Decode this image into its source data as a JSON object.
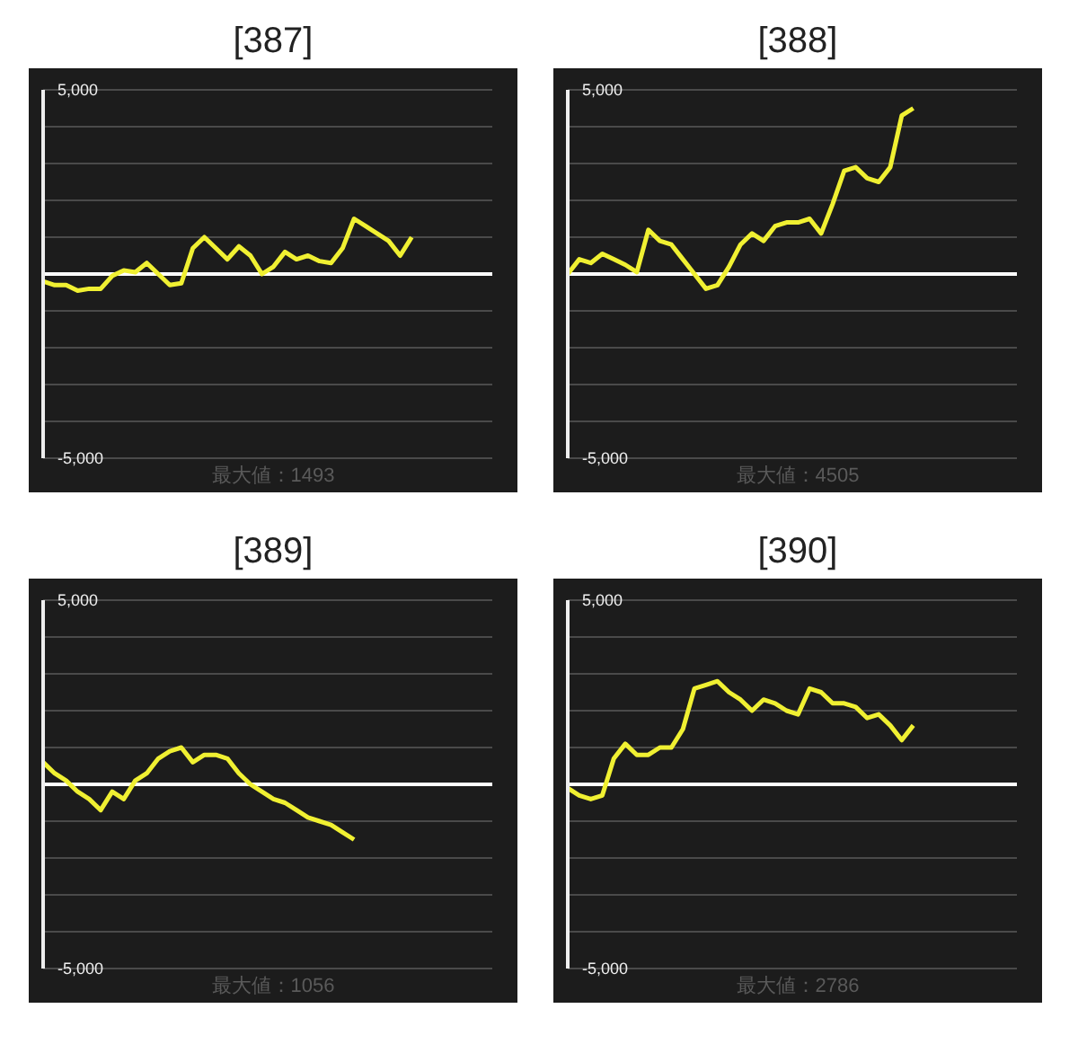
{
  "chart_data": [
    {
      "type": "line",
      "title": "[387]",
      "annotations": [
        "最大値：1493"
      ],
      "categories": [
        null,
        null,
        null,
        null,
        null,
        null,
        null,
        null,
        null,
        null,
        null,
        null,
        null,
        null,
        null,
        null,
        null,
        null,
        null,
        null,
        null,
        null,
        null,
        null,
        null,
        null,
        null,
        null,
        null,
        null,
        null,
        null,
        null,
        null,
        null,
        null,
        null,
        null,
        null,
        null
      ],
      "series": [
        {
          "color": "#f0f032",
          "values": [
            -200,
            -300,
            -300,
            -450,
            -400,
            -400,
            -50,
            100,
            50,
            300,
            0,
            -300,
            -250,
            700,
            1000,
            700,
            400,
            750,
            500,
            0,
            200,
            600,
            400,
            500,
            350,
            300,
            700,
            1500,
            1300,
            1100,
            900,
            500,
            1000,
            null,
            null,
            null,
            null,
            null,
            null,
            null
          ]
        }
      ],
      "ylim": [
        -5000,
        5000
      ],
      "yticks": [
        {
          "value": -5000,
          "label": "-5,000"
        },
        {
          "value": -4000,
          "label": null
        },
        {
          "value": -3000,
          "label": null
        },
        {
          "value": -2000,
          "label": null
        },
        {
          "value": -1000,
          "label": null
        },
        {
          "value": 0,
          "label": null
        },
        {
          "value": 1000,
          "label": null
        },
        {
          "value": 2000,
          "label": null
        },
        {
          "value": 3000,
          "label": null
        },
        {
          "value": 4000,
          "label": null
        },
        {
          "value": 5000,
          "label": "5,000"
        }
      ],
      "grid": "y",
      "tick_labels": "y",
      "ref_lines": [
        {
          "axis": "y",
          "value": 0,
          "color": "#ffffff"
        }
      ]
    },
    {
      "type": "line",
      "title": "[388]",
      "annotations": [
        "最大値：4505"
      ],
      "categories": [
        null,
        null,
        null,
        null,
        null,
        null,
        null,
        null,
        null,
        null,
        null,
        null,
        null,
        null,
        null,
        null,
        null,
        null,
        null,
        null,
        null,
        null,
        null,
        null,
        null,
        null,
        null,
        null,
        null,
        null,
        null,
        null,
        null,
        null,
        null,
        null,
        null,
        null,
        null,
        null
      ],
      "series": [
        {
          "color": "#f0f032",
          "values": [
            0,
            400,
            300,
            550,
            400,
            250,
            50,
            1200,
            900,
            800,
            400,
            0,
            -400,
            -300,
            200,
            800,
            1100,
            900,
            1300,
            1400,
            1400,
            1500,
            1100,
            1900,
            2800,
            2900,
            2600,
            2500,
            2900,
            4300,
            4500,
            null,
            null,
            null,
            null,
            null,
            null,
            null,
            null,
            null
          ]
        }
      ],
      "ylim": [
        -5000,
        5000
      ],
      "yticks": [
        {
          "value": -5000,
          "label": "-5,000"
        },
        {
          "value": -4000,
          "label": null
        },
        {
          "value": -3000,
          "label": null
        },
        {
          "value": -2000,
          "label": null
        },
        {
          "value": -1000,
          "label": null
        },
        {
          "value": 0,
          "label": null
        },
        {
          "value": 1000,
          "label": null
        },
        {
          "value": 2000,
          "label": null
        },
        {
          "value": 3000,
          "label": null
        },
        {
          "value": 4000,
          "label": null
        },
        {
          "value": 5000,
          "label": "5,000"
        }
      ],
      "grid": "y",
      "tick_labels": "y",
      "ref_lines": [
        {
          "axis": "y",
          "value": 0,
          "color": "#ffffff"
        }
      ]
    },
    {
      "type": "line",
      "title": "[389]",
      "annotations": [
        "最大値：1056"
      ],
      "categories": [
        null,
        null,
        null,
        null,
        null,
        null,
        null,
        null,
        null,
        null,
        null,
        null,
        null,
        null,
        null,
        null,
        null,
        null,
        null,
        null,
        null,
        null,
        null,
        null,
        null,
        null,
        null,
        null,
        null,
        null,
        null,
        null,
        null,
        null,
        null,
        null,
        null,
        null,
        null,
        null
      ],
      "series": [
        {
          "color": "#f0f032",
          "values": [
            600,
            300,
            100,
            -200,
            -400,
            -700,
            -200,
            -400,
            100,
            300,
            700,
            900,
            1000,
            600,
            800,
            800,
            700,
            300,
            0,
            -200,
            -400,
            -500,
            -700,
            -900,
            -1000,
            -1100,
            -1300,
            -1500,
            null,
            null,
            null,
            null,
            null,
            null,
            null,
            null,
            null,
            null,
            null,
            null
          ]
        }
      ],
      "ylim": [
        -5000,
        5000
      ],
      "yticks": [
        {
          "value": -5000,
          "label": "-5,000"
        },
        {
          "value": -4000,
          "label": null
        },
        {
          "value": -3000,
          "label": null
        },
        {
          "value": -2000,
          "label": null
        },
        {
          "value": -1000,
          "label": null
        },
        {
          "value": 0,
          "label": null
        },
        {
          "value": 1000,
          "label": null
        },
        {
          "value": 2000,
          "label": null
        },
        {
          "value": 3000,
          "label": null
        },
        {
          "value": 4000,
          "label": null
        },
        {
          "value": 5000,
          "label": "5,000"
        }
      ],
      "grid": "y",
      "tick_labels": "y",
      "ref_lines": [
        {
          "axis": "y",
          "value": 0,
          "color": "#ffffff"
        }
      ]
    },
    {
      "type": "line",
      "title": "[390]",
      "annotations": [
        "最大値：2786"
      ],
      "categories": [
        null,
        null,
        null,
        null,
        null,
        null,
        null,
        null,
        null,
        null,
        null,
        null,
        null,
        null,
        null,
        null,
        null,
        null,
        null,
        null,
        null,
        null,
        null,
        null,
        null,
        null,
        null,
        null,
        null,
        null,
        null,
        null,
        null,
        null,
        null,
        null,
        null,
        null,
        null,
        null
      ],
      "series": [
        {
          "color": "#f0f032",
          "values": [
            -100,
            -300,
            -400,
            -300,
            700,
            1100,
            800,
            800,
            1000,
            1000,
            1500,
            2600,
            2700,
            2800,
            2500,
            2300,
            2000,
            2300,
            2200,
            2000,
            1900,
            2600,
            2500,
            2200,
            2200,
            2100,
            1800,
            1900,
            1600,
            1200,
            1600,
            null,
            null,
            null,
            null,
            null,
            null,
            null,
            null,
            null
          ]
        }
      ],
      "ylim": [
        -5000,
        5000
      ],
      "yticks": [
        {
          "value": -5000,
          "label": "-5,000"
        },
        {
          "value": -4000,
          "label": null
        },
        {
          "value": -3000,
          "label": null
        },
        {
          "value": -2000,
          "label": null
        },
        {
          "value": -1000,
          "label": null
        },
        {
          "value": 0,
          "label": null
        },
        {
          "value": 1000,
          "label": null
        },
        {
          "value": 2000,
          "label": null
        },
        {
          "value": 3000,
          "label": null
        },
        {
          "value": 4000,
          "label": null
        },
        {
          "value": 5000,
          "label": "5,000"
        }
      ],
      "grid": "y",
      "tick_labels": "y",
      "ref_lines": [
        {
          "axis": "y",
          "value": 0,
          "color": "#ffffff"
        }
      ]
    }
  ]
}
